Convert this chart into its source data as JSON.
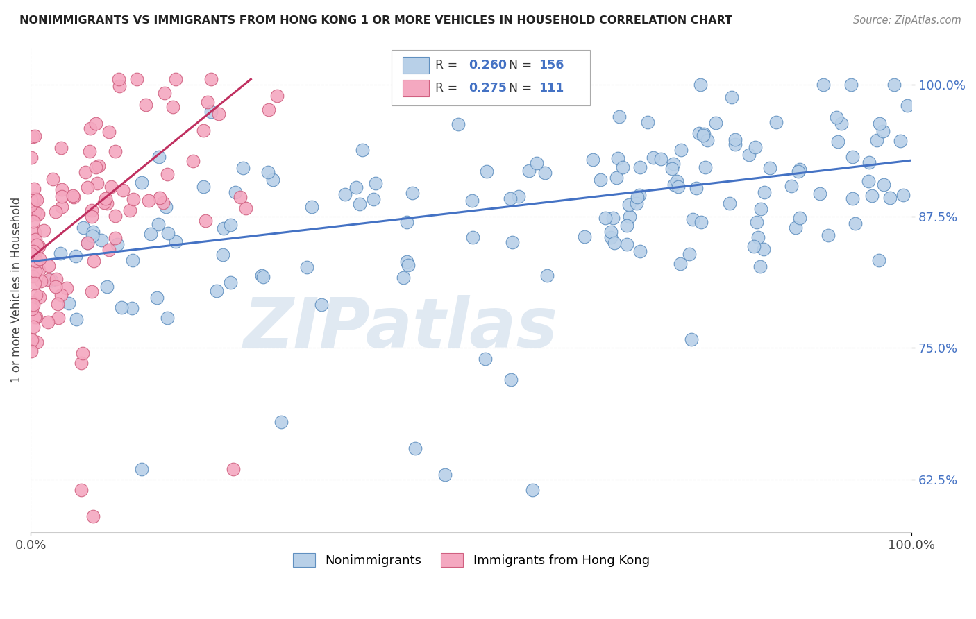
{
  "title": "NONIMMIGRANTS VS IMMIGRANTS FROM HONG KONG 1 OR MORE VEHICLES IN HOUSEHOLD CORRELATION CHART",
  "source": "Source: ZipAtlas.com",
  "ylabel": "1 or more Vehicles in Household",
  "watermark": "ZIPatlas",
  "blue_color": "#b8d0e8",
  "pink_color": "#f4a8c0",
  "blue_edge": "#6090c0",
  "pink_edge": "#d06080",
  "blue_line": "#4472c4",
  "pink_line": "#c03060",
  "r_color": "#4472c4",
  "n_color": "#4472c4",
  "title_color": "#222222",
  "source_color": "#888888",
  "ylabel_color": "#444444",
  "ytick_color": "#4472c4",
  "xtick_color": "#444444",
  "grid_color": "#cccccc",
  "background": "#ffffff",
  "xlim": [
    0.0,
    1.0
  ],
  "ylim": [
    0.575,
    1.035
  ],
  "yticks": [
    0.625,
    0.75,
    0.875,
    1.0
  ],
  "ytick_labels": [
    "62.5%",
    "75.0%",
    "87.5%",
    "100.0%"
  ],
  "blue_trend_x": [
    0.0,
    1.0
  ],
  "blue_trend_y": [
    0.832,
    0.928
  ],
  "pink_trend_x": [
    0.0,
    0.25
  ],
  "pink_trend_y": [
    0.835,
    1.005
  ],
  "blue_seed": 42,
  "pink_seed": 77
}
